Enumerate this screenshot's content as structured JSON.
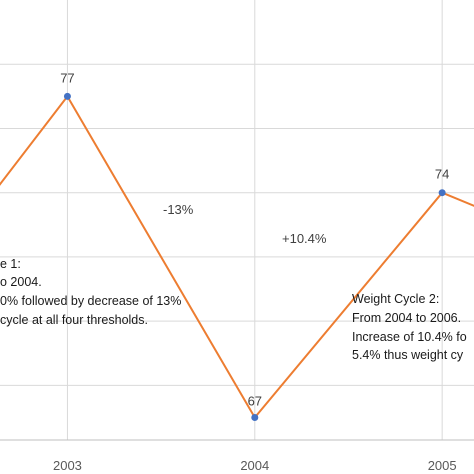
{
  "chart_data": {
    "type": "line",
    "x": [
      2002.5,
      2003,
      2004,
      2005,
      2005.5
    ],
    "values": [
      73.2,
      77,
      67,
      74,
      72.8
    ],
    "x_tick_labels": [
      "2003",
      "2004",
      "2005"
    ],
    "x_tick_values": [
      2003,
      2004,
      2005
    ],
    "y_grid_values": [
      68,
      70,
      72,
      74,
      76,
      78
    ],
    "data_labels": [
      {
        "x": 2003,
        "y": 77,
        "text": "77"
      },
      {
        "x": 2004,
        "y": 67,
        "text": "67"
      },
      {
        "x": 2005,
        "y": 74,
        "text": "74"
      }
    ],
    "change_labels": [
      "-13%",
      "+10.4%"
    ],
    "annotations": [
      {
        "lines": [
          "e 1:",
          "o 2004.",
          "0% followed by decrease of 13%",
          "cycle at all four thresholds."
        ]
      },
      {
        "lines": [
          "Weight Cycle 2:",
          "From 2004  to 2006.",
          "Increase of 10.4% fo",
          "5.4% thus weight cy"
        ]
      }
    ],
    "grid": "vertical and horizontal",
    "line_color": "#ed7d31",
    "marker_color": "#4472c4",
    "grid_color": "#d9d9d9",
    "xlim": [
      2002.64,
      2005.17
    ],
    "ylim": [
      66.3,
      80
    ]
  }
}
